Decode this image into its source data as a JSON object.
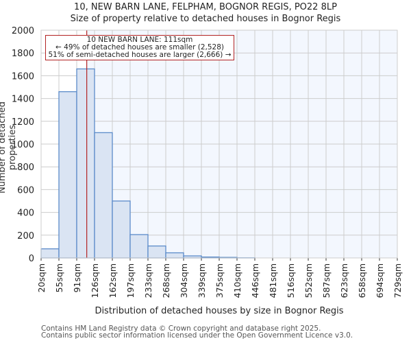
{
  "chart_data": {
    "type": "bar",
    "title": "10, NEW BARN LANE, FELPHAM, BOGNOR REGIS, PO22 8LP",
    "subtitle": "Size of property relative to detached houses in Bognor Regis",
    "xlabel": "Distribution of detached houses by size in Bognor Regis",
    "ylabel": "Number of detached properties",
    "ylim": [
      0,
      2000
    ],
    "yticks": [
      0,
      200,
      400,
      600,
      800,
      1000,
      1200,
      1400,
      1600,
      1800,
      2000
    ],
    "categories": [
      "20sqm",
      "55sqm",
      "91sqm",
      "126sqm",
      "162sqm",
      "197sqm",
      "233sqm",
      "268sqm",
      "304sqm",
      "339sqm",
      "375sqm",
      "410sqm",
      "446sqm",
      "481sqm",
      "516sqm",
      "552sqm",
      "587sqm",
      "623sqm",
      "658sqm",
      "694sqm",
      "729sqm"
    ],
    "values": [
      80,
      1460,
      1660,
      1100,
      500,
      205,
      105,
      45,
      18,
      8,
      5,
      1,
      0,
      0,
      0,
      0,
      0,
      0,
      0,
      0
    ],
    "grid": true,
    "subject_line": {
      "x_sqm": 111,
      "color": "#b22222"
    },
    "bar_fill": "#dae4f3",
    "bar_edge": "#5b8bc9",
    "highlight_bg": "#f3f7fe",
    "annotation": {
      "line1": "10 NEW BARN LANE: 111sqm",
      "line2": "← 49% of detached houses are smaller (2,528)",
      "line3": "51% of semi-detached houses are larger (2,666) →"
    }
  },
  "header": {
    "title": "10, NEW BARN LANE, FELPHAM, BOGNOR REGIS, PO22 8LP",
    "subtitle": "Size of property relative to detached houses in Bognor Regis"
  },
  "axes": {
    "xlabel": "Distribution of detached houses by size in Bognor Regis",
    "ylabel": "Number of detached properties"
  },
  "footer": {
    "line1": "Contains HM Land Registry data © Crown copyright and database right 2025.",
    "line2": "Contains public sector information licensed under the Open Government Licence v3.0."
  }
}
